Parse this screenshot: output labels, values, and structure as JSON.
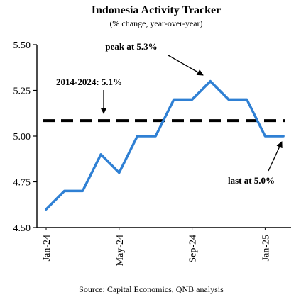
{
  "chart_data": {
    "type": "line",
    "title": "Indonesia Activity Tracker",
    "subtitle": "(% change, year-over-year)",
    "source": "Source: Capital Economics, QNB analysis",
    "x": [
      "Jan-24",
      "Feb-24",
      "Mar-24",
      "Apr-24",
      "May-24",
      "Jun-24",
      "Jul-24",
      "Aug-24",
      "Sep-24",
      "Oct-24",
      "Nov-24",
      "Dec-24",
      "Jan-25",
      "Feb-25"
    ],
    "x_tick_labels": [
      "Jan-24",
      "May-24",
      "Sep-24",
      "Jan-25"
    ],
    "series": [
      {
        "values": [
          4.6,
          4.7,
          4.7,
          4.9,
          4.8,
          5.0,
          5.0,
          5.2,
          5.2,
          5.3,
          5.2,
          5.2,
          5.0,
          5.0
        ],
        "color": "#2f80d4"
      }
    ],
    "reference_line": {
      "value": 5.085,
      "label": "2014-2024: 5.1%",
      "color": "#000000",
      "style": "dashed"
    },
    "annotations": [
      {
        "text": "peak at 5.3%",
        "x": "Sep-24",
        "y": 5.3
      },
      {
        "text": "last at 5.0%",
        "x": "Feb-25",
        "y": 5.0
      }
    ],
    "y_tick_labels": [
      "4.50",
      "4.75",
      "5.00",
      "5.25",
      "5.50"
    ],
    "ylim": [
      4.5,
      5.5
    ],
    "grid": false,
    "legend": "none"
  }
}
